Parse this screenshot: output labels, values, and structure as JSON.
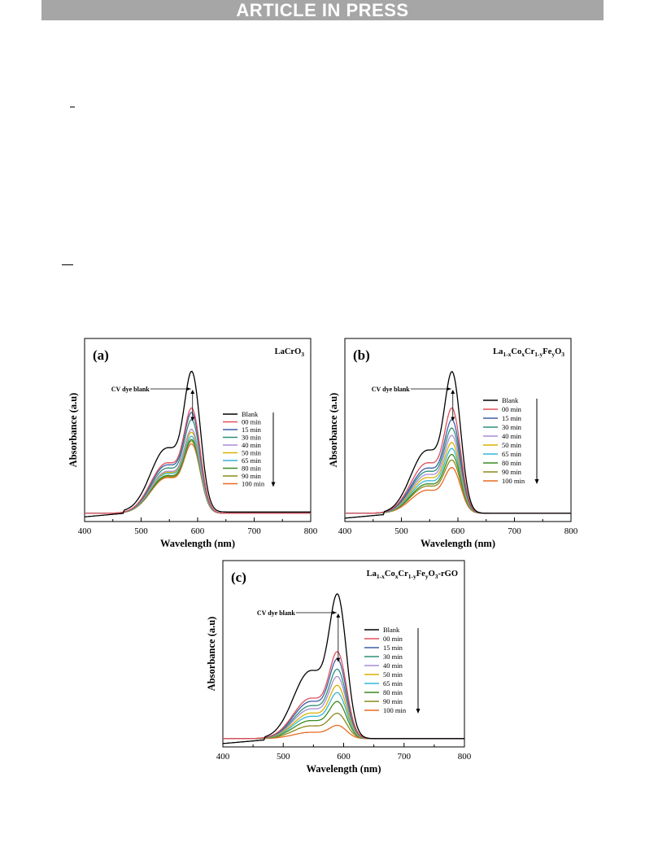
{
  "header": {
    "banner": "ARTICLE IN PRESS"
  },
  "chart_data": [
    {
      "type": "line",
      "panel_label": "(a)",
      "title": "LaCrO3",
      "title_parts": [
        {
          "t": "LaCrO"
        },
        {
          "t": "3",
          "sub": true
        }
      ],
      "xlabel": "Wavelength (nm)",
      "ylabel": "Absorbance (a.u)",
      "xlim": [
        400,
        800
      ],
      "xticks": [
        400,
        500,
        600,
        700,
        800
      ],
      "ylim": [
        0,
        1.0
      ],
      "annotation": "CV dye blank",
      "legend_position": "top-right",
      "series": [
        {
          "name": "Blank",
          "color": "#000000",
          "peak": 1.0,
          "shoulder": 0.64,
          "base": 0.03
        },
        {
          "name": "00 min",
          "color": "#e0505a",
          "peak": 0.74,
          "shoulder": 0.5,
          "base": 0.02
        },
        {
          "name": "15 min",
          "color": "#3b5fa8",
          "peak": 0.71,
          "shoulder": 0.48,
          "base": 0.02
        },
        {
          "name": "30 min",
          "color": "#2f8f7a",
          "peak": 0.66,
          "shoulder": 0.45,
          "base": 0.02
        },
        {
          "name": "40 min",
          "color": "#a98bd6",
          "peak": 0.59,
          "shoulder": 0.42,
          "base": 0.02
        },
        {
          "name": "50 min",
          "color": "#d9b000",
          "peak": 0.57,
          "shoulder": 0.41,
          "base": 0.02
        },
        {
          "name": "65 min",
          "color": "#35b6d8",
          "peak": 0.54,
          "shoulder": 0.4,
          "base": 0.02
        },
        {
          "name": "80 min",
          "color": "#3a8a20",
          "peak": 0.52,
          "shoulder": 0.38,
          "base": 0.02
        },
        {
          "name": "90 min",
          "color": "#8a8a1a",
          "peak": 0.51,
          "shoulder": 0.37,
          "base": 0.02
        },
        {
          "name": "100 min",
          "color": "#e86a20",
          "peak": 0.49,
          "shoulder": 0.36,
          "base": 0.02
        }
      ]
    },
    {
      "type": "line",
      "panel_label": "(b)",
      "title": "La1-xCoxCr1-yFeyO3",
      "title_parts": [
        {
          "t": "La"
        },
        {
          "t": "1-x",
          "sub": true
        },
        {
          "t": "Co"
        },
        {
          "t": "x",
          "sub": true
        },
        {
          "t": "Cr"
        },
        {
          "t": "1-y",
          "sub": true
        },
        {
          "t": "Fe"
        },
        {
          "t": "y",
          "sub": true
        },
        {
          "t": "O"
        },
        {
          "t": "3",
          "sub": true
        }
      ],
      "xlabel": "Wavelength (nm)",
      "ylabel": "Absorbance (a.u)",
      "xlim": [
        400,
        800
      ],
      "xticks": [
        400,
        500,
        600,
        700,
        800
      ],
      "ylim": [
        0,
        1.0
      ],
      "annotation": "CV dye blank",
      "legend_position": "top-right",
      "series": [
        {
          "name": "Blank",
          "color": "#000000",
          "peak": 1.0,
          "shoulder": 0.62,
          "base": 0.02
        },
        {
          "name": "00 min",
          "color": "#e0505a",
          "peak": 0.74,
          "shoulder": 0.5,
          "base": 0.02
        },
        {
          "name": "15 min",
          "color": "#3b5fa8",
          "peak": 0.66,
          "shoulder": 0.45,
          "base": 0.02
        },
        {
          "name": "30 min",
          "color": "#2f8f7a",
          "peak": 0.6,
          "shoulder": 0.42,
          "base": 0.02
        },
        {
          "name": "40 min",
          "color": "#a98bd6",
          "peak": 0.55,
          "shoulder": 0.39,
          "base": 0.02
        },
        {
          "name": "50 min",
          "color": "#d9b000",
          "peak": 0.5,
          "shoulder": 0.36,
          "base": 0.02
        },
        {
          "name": "65 min",
          "color": "#35b6d8",
          "peak": 0.46,
          "shoulder": 0.33,
          "base": 0.02
        },
        {
          "name": "80 min",
          "color": "#3a8a20",
          "peak": 0.42,
          "shoulder": 0.3,
          "base": 0.02
        },
        {
          "name": "90 min",
          "color": "#8a8a1a",
          "peak": 0.38,
          "shoulder": 0.28,
          "base": 0.02
        },
        {
          "name": "100 min",
          "color": "#e86a20",
          "peak": 0.33,
          "shoulder": 0.24,
          "base": 0.02
        }
      ]
    },
    {
      "type": "line",
      "panel_label": "(c)",
      "title": "La1-xCoxCr1-yFeyO3-rGO",
      "title_parts": [
        {
          "t": "La"
        },
        {
          "t": "1-x",
          "sub": true
        },
        {
          "t": "Co"
        },
        {
          "t": "x",
          "sub": true
        },
        {
          "t": "Cr"
        },
        {
          "t": "1-y",
          "sub": true
        },
        {
          "t": "Fe"
        },
        {
          "t": "y",
          "sub": true
        },
        {
          "t": "O"
        },
        {
          "t": "3",
          "sub": true
        },
        {
          "t": "-rGO"
        }
      ],
      "xlabel": "Wavelength (nm)",
      "ylabel": "Absorbance (a.u)",
      "xlim": [
        400,
        800
      ],
      "xticks": [
        400,
        500,
        600,
        700,
        800
      ],
      "ylim": [
        0,
        1.0
      ],
      "annotation": "CV dye blank",
      "legend_position": "top-right",
      "series": [
        {
          "name": "Blank",
          "color": "#000000",
          "peak": 1.0,
          "shoulder": 0.66,
          "base": 0.02
        },
        {
          "name": "00 min",
          "color": "#e0505a",
          "peak": 0.61,
          "shoulder": 0.4,
          "base": 0.02
        },
        {
          "name": "15 min",
          "color": "#3b5fa8",
          "peak": 0.56,
          "shoulder": 0.37,
          "base": 0.02
        },
        {
          "name": "30 min",
          "color": "#2f8f7a",
          "peak": 0.49,
          "shoulder": 0.33,
          "base": 0.02
        },
        {
          "name": "40 min",
          "color": "#a98bd6",
          "peak": 0.44,
          "shoulder": 0.3,
          "base": 0.02
        },
        {
          "name": "50 min",
          "color": "#d9b000",
          "peak": 0.38,
          "shoulder": 0.26,
          "base": 0.02
        },
        {
          "name": "65 min",
          "color": "#35b6d8",
          "peak": 0.33,
          "shoulder": 0.23,
          "base": 0.02
        },
        {
          "name": "80 min",
          "color": "#3a8a20",
          "peak": 0.27,
          "shoulder": 0.19,
          "base": 0.02
        },
        {
          "name": "90 min",
          "color": "#8a8a1a",
          "peak": 0.19,
          "shoulder": 0.14,
          "base": 0.02
        },
        {
          "name": "100 min",
          "color": "#e86a20",
          "peak": 0.11,
          "shoulder": 0.08,
          "base": 0.02
        }
      ]
    }
  ]
}
